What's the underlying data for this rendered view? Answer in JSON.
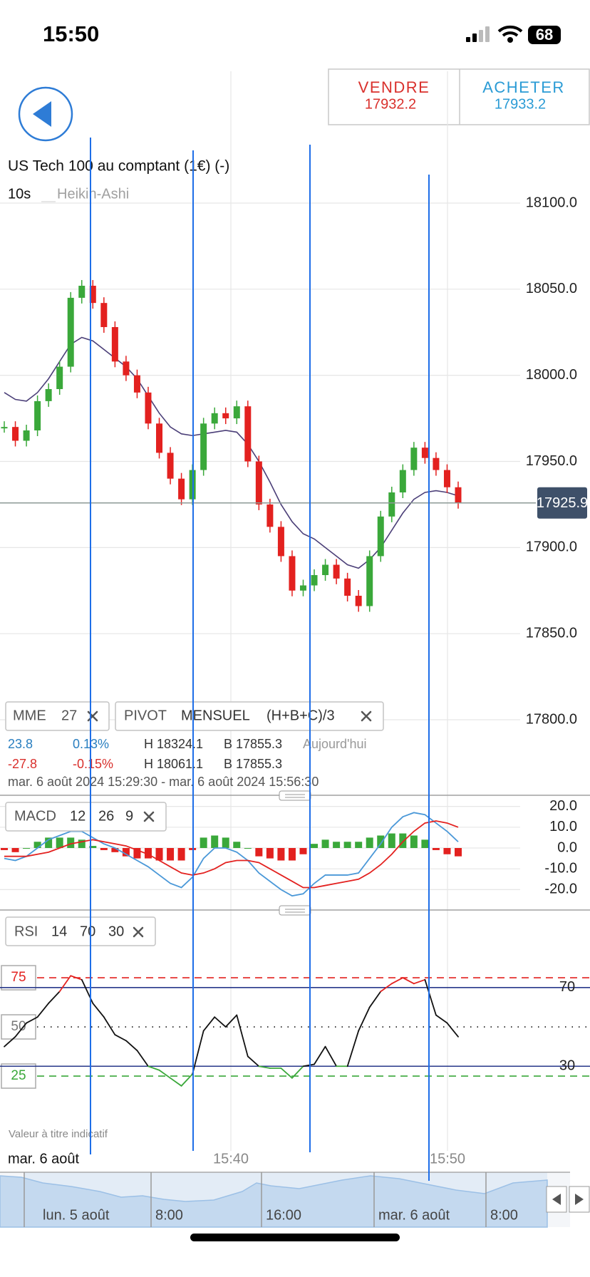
{
  "status_bar": {
    "time": "15:50",
    "battery": 68
  },
  "trade": {
    "sell_label": "VENDRE",
    "sell_price": 17932.2,
    "buy_label": "ACHETER",
    "buy_price": 17933.2
  },
  "instrument": {
    "title": "US Tech 100 au comptant (1€) (-)",
    "interval": "10s",
    "chart_type": "Heikin-Ashi"
  },
  "price_chart": {
    "type": "candlestick",
    "ylim": [
      17760,
      18140
    ],
    "yticks": [
      {
        "value": 18100,
        "label": "18100.0"
      },
      {
        "value": 18050,
        "label": "18050.0"
      },
      {
        "value": 18000,
        "label": "18000.0"
      },
      {
        "value": 17950,
        "label": "17950.0"
      },
      {
        "value": 17900,
        "label": "17900.0"
      },
      {
        "value": 17850,
        "label": "17850.0"
      },
      {
        "value": 17800,
        "label": "17800.0"
      }
    ],
    "last_price": 17925.9,
    "up_color": "#3aa83a",
    "down_color": "#e3211f",
    "closes": [
      17970,
      17962,
      17968,
      17985,
      17992,
      18005,
      18045,
      18052,
      18042,
      18028,
      18008,
      18000,
      17990,
      17972,
      17955,
      17940,
      17928,
      17945,
      17972,
      17978,
      17975,
      17982,
      17950,
      17925,
      17912,
      17895,
      17875,
      17878,
      17884,
      17890,
      17882,
      17872,
      17866,
      17895,
      17918,
      17932,
      17945,
      17958,
      17952,
      17945,
      17935,
      17925.9
    ],
    "mme": {
      "color": "#4b3f78",
      "values": [
        17990,
        17986,
        17985,
        17990,
        17998,
        18008,
        18018,
        18022,
        18020,
        18015,
        18010,
        18005,
        17998,
        17988,
        17978,
        17970,
        17966,
        17965,
        17966,
        17967,
        17968,
        17967,
        17960,
        17950,
        17938,
        17925,
        17915,
        17908,
        17905,
        17900,
        17895,
        17890,
        17888,
        17893,
        17900,
        17910,
        17920,
        17928,
        17932,
        17933,
        17932,
        17930
      ]
    },
    "xticks": [
      "15:40",
      "15:50"
    ],
    "date_label": "mar. 6 août",
    "note": "Valeur à titre indicatif"
  },
  "indicators": {
    "mme": {
      "name": "MME",
      "period": 27
    },
    "pivot": {
      "name": "PIVOT",
      "period": "MENSUEL",
      "formula": "(H+B+C)/3"
    },
    "rows": [
      [
        "23.8",
        "0.13%",
        "H 18324.1",
        "B 17855.3",
        "Aujourd'hui"
      ],
      [
        "-27.8",
        "-0.15%",
        "H 18061.1",
        "B 17855.3"
      ]
    ],
    "range": "mar. 6 août 2024 15:29:30 - mar. 6 août 2024 15:56:30"
  },
  "macd": {
    "type": "line",
    "name": "MACD",
    "fast": 12,
    "slow": 26,
    "signal": 9,
    "ylim": [
      -30,
      25
    ],
    "yticks": [
      {
        "value": 20,
        "label": "20.0"
      },
      {
        "value": 10,
        "label": "10.0"
      },
      {
        "value": 0,
        "label": "0.0"
      },
      {
        "value": -10,
        "label": "-10.0"
      },
      {
        "value": -20,
        "label": "-20.0"
      }
    ],
    "macd_line": {
      "color": "#4a98d8",
      "values": [
        -5,
        -6,
        -4,
        0,
        4,
        6,
        8,
        8,
        5,
        2,
        0,
        -3,
        -6,
        -9,
        -13,
        -17,
        -19,
        -14,
        -5,
        0,
        0,
        -2,
        -6,
        -12,
        -16,
        -20,
        -23,
        -22,
        -17,
        -13,
        -13,
        -13,
        -12,
        -5,
        2,
        10,
        15,
        17,
        16,
        12,
        8,
        3
      ]
    },
    "signal_line": {
      "color": "#e3211f",
      "values": [
        -4,
        -4,
        -4,
        -3,
        -2,
        0,
        2,
        3,
        4,
        3,
        2,
        1,
        -1,
        -3,
        -6,
        -9,
        -12,
        -13,
        -12,
        -10,
        -7,
        -6,
        -6,
        -7,
        -10,
        -13,
        -16,
        -19,
        -19,
        -18,
        -17,
        -16,
        -15,
        -12,
        -8,
        -3,
        3,
        8,
        12,
        13,
        12,
        10
      ]
    },
    "histogram": {
      "up_color": "#3aa83a",
      "down_color": "#e3211f",
      "values": [
        -1,
        -2,
        0,
        3,
        5,
        5,
        5,
        4,
        1,
        -1,
        -2,
        -4,
        -5,
        -5,
        -6,
        -6,
        -6,
        -1,
        5,
        6,
        5,
        3,
        0,
        -4,
        -5,
        -6,
        -6,
        -3,
        2,
        4,
        3,
        3,
        3,
        5,
        6,
        7,
        7,
        6,
        4,
        -1,
        -3,
        -4
      ]
    }
  },
  "rsi": {
    "type": "line",
    "name": "RSI",
    "period": 14,
    "upper": 70,
    "lower": 30,
    "ylim": [
      -11,
      109
    ],
    "levels_left": [
      75,
      50,
      25
    ],
    "levels_right": [
      70,
      30
    ],
    "color": "#111111",
    "over_color": "#e3211f",
    "under_color": "#3aa83a",
    "values": [
      40,
      45,
      52,
      55,
      62,
      68,
      76,
      74,
      62,
      55,
      46,
      43,
      38,
      30,
      28,
      24,
      20,
      26,
      48,
      55,
      50,
      56,
      35,
      30,
      29,
      29,
      24,
      30,
      31,
      40,
      30,
      30,
      48,
      60,
      68,
      72,
      75,
      72,
      74,
      56,
      52,
      45
    ]
  },
  "navigator": {
    "labels": [
      "lun. 5 août",
      "8:00",
      "16:00",
      "mar. 6 août",
      "8:00"
    ]
  }
}
